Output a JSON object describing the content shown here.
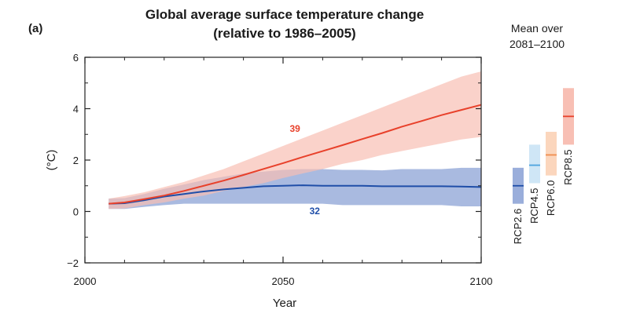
{
  "panel_label": "(a)",
  "chart_data": {
    "type": "area",
    "title": "Global average surface temperature change",
    "subtitle": "(relative to 1986–2005)",
    "xlabel": "Year",
    "ylabel": "(°C)",
    "xlim": [
      2000,
      2100
    ],
    "ylim": [
      -2,
      6
    ],
    "x_major_ticks": [
      2000,
      2050,
      2100
    ],
    "x_tick_labels": [
      "2000",
      "2050",
      "2100"
    ],
    "y_major_ticks": [
      -2,
      0,
      2,
      4,
      6
    ],
    "y_tick_labels": [
      "−2",
      "0",
      "2",
      "4",
      "6"
    ],
    "grid": false,
    "series": [
      {
        "label": "32",
        "color": "#1f4ea8",
        "band_color": "#9aaedb",
        "label_at": [
          2058,
          -0.1
        ],
        "x": [
          2006,
          2010,
          2015,
          2020,
          2025,
          2030,
          2035,
          2040,
          2045,
          2050,
          2055,
          2060,
          2065,
          2070,
          2075,
          2080,
          2085,
          2090,
          2095,
          2100
        ],
        "mean": [
          0.3,
          0.32,
          0.44,
          0.58,
          0.68,
          0.78,
          0.86,
          0.92,
          0.98,
          1.0,
          1.02,
          1.0,
          1.0,
          1.0,
          0.98,
          0.98,
          0.98,
          0.98,
          0.97,
          0.95
        ],
        "lower": [
          0.1,
          0.1,
          0.18,
          0.25,
          0.3,
          0.3,
          0.3,
          0.3,
          0.3,
          0.3,
          0.3,
          0.3,
          0.25,
          0.25,
          0.25,
          0.25,
          0.25,
          0.25,
          0.2,
          0.2
        ],
        "upper": [
          0.5,
          0.52,
          0.68,
          0.88,
          1.05,
          1.22,
          1.35,
          1.48,
          1.55,
          1.62,
          1.65,
          1.65,
          1.62,
          1.62,
          1.6,
          1.65,
          1.65,
          1.65,
          1.7,
          1.7
        ]
      },
      {
        "label": "39",
        "color": "#e8412b",
        "band_color": "#f8bfb4",
        "label_at": [
          2053,
          3.1
        ],
        "x": [
          2006,
          2010,
          2015,
          2020,
          2025,
          2030,
          2035,
          2040,
          2045,
          2050,
          2055,
          2060,
          2065,
          2070,
          2075,
          2080,
          2085,
          2090,
          2095,
          2100
        ],
        "mean": [
          0.3,
          0.35,
          0.48,
          0.62,
          0.8,
          1.0,
          1.2,
          1.42,
          1.65,
          1.88,
          2.12,
          2.35,
          2.58,
          2.82,
          3.05,
          3.3,
          3.52,
          3.75,
          3.95,
          4.15
        ],
        "lower": [
          0.1,
          0.12,
          0.25,
          0.35,
          0.5,
          0.62,
          0.8,
          0.95,
          1.1,
          1.3,
          1.48,
          1.65,
          1.85,
          2.0,
          2.2,
          2.35,
          2.5,
          2.65,
          2.8,
          2.9
        ],
        "upper": [
          0.5,
          0.6,
          0.75,
          0.95,
          1.15,
          1.4,
          1.65,
          1.95,
          2.25,
          2.55,
          2.85,
          3.15,
          3.45,
          3.75,
          4.05,
          4.35,
          4.65,
          4.95,
          5.25,
          5.45
        ]
      }
    ],
    "side_panel": {
      "title_lines": [
        "Mean over",
        "2081–2100"
      ],
      "bars": [
        {
          "name": "RCP2.6",
          "mean": 1.0,
          "low": 0.3,
          "high": 1.7,
          "color": "#1f4ea8",
          "fill": "#9aaedb"
        },
        {
          "name": "RCP4.5",
          "mean": 1.8,
          "low": 1.1,
          "high": 2.6,
          "color": "#4da3df",
          "fill": "#cfe6f6"
        },
        {
          "name": "RCP6.0",
          "mean": 2.2,
          "low": 1.4,
          "high": 3.1,
          "color": "#f08d4f",
          "fill": "#fbd6bd"
        },
        {
          "name": "RCP8.5",
          "mean": 3.7,
          "low": 2.6,
          "high": 4.8,
          "color": "#e8412b",
          "fill": "#f8bfb4"
        }
      ]
    }
  }
}
